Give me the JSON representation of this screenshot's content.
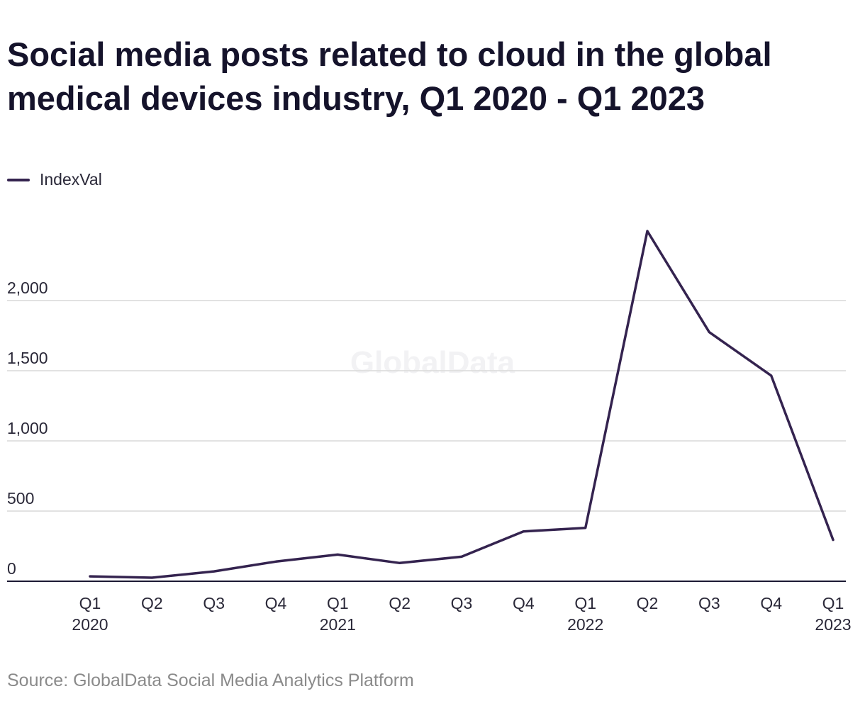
{
  "chart_data": {
    "type": "line",
    "title": "Social media posts related to cloud in the global medical devices industry, Q1 2020 - Q1 2023",
    "xlabel": "",
    "ylabel": "",
    "categories": [
      {
        "quarter": "Q1",
        "year": "2020"
      },
      {
        "quarter": "Q2",
        "year": ""
      },
      {
        "quarter": "Q3",
        "year": ""
      },
      {
        "quarter": "Q4",
        "year": ""
      },
      {
        "quarter": "Q1",
        "year": "2021"
      },
      {
        "quarter": "Q2",
        "year": ""
      },
      {
        "quarter": "Q3",
        "year": ""
      },
      {
        "quarter": "Q4",
        "year": ""
      },
      {
        "quarter": "Q1",
        "year": "2022"
      },
      {
        "quarter": "Q2",
        "year": ""
      },
      {
        "quarter": "Q3",
        "year": ""
      },
      {
        "quarter": "Q4",
        "year": ""
      },
      {
        "quarter": "Q1",
        "year": "2023"
      }
    ],
    "series": [
      {
        "name": "IndexVal",
        "color": "#34234f",
        "values": [
          35,
          25,
          70,
          140,
          190,
          130,
          175,
          355,
          380,
          2495,
          1775,
          1465,
          295
        ]
      }
    ],
    "ylim": [
      0,
      2500
    ],
    "yticks": [
      0,
      500,
      1000,
      1500,
      2000
    ],
    "ytick_labels": [
      "0",
      "500",
      "1,000",
      "1,500",
      "2,000"
    ],
    "grid": true,
    "legend_position": "top-left"
  },
  "legend": {
    "label": "IndexVal"
  },
  "watermark": "GlobalData",
  "source": "Source: GlobalData Social Media Analytics Platform",
  "colors": {
    "line": "#34234f",
    "grid": "#d9d9d9",
    "axis": "#1c1a33"
  }
}
